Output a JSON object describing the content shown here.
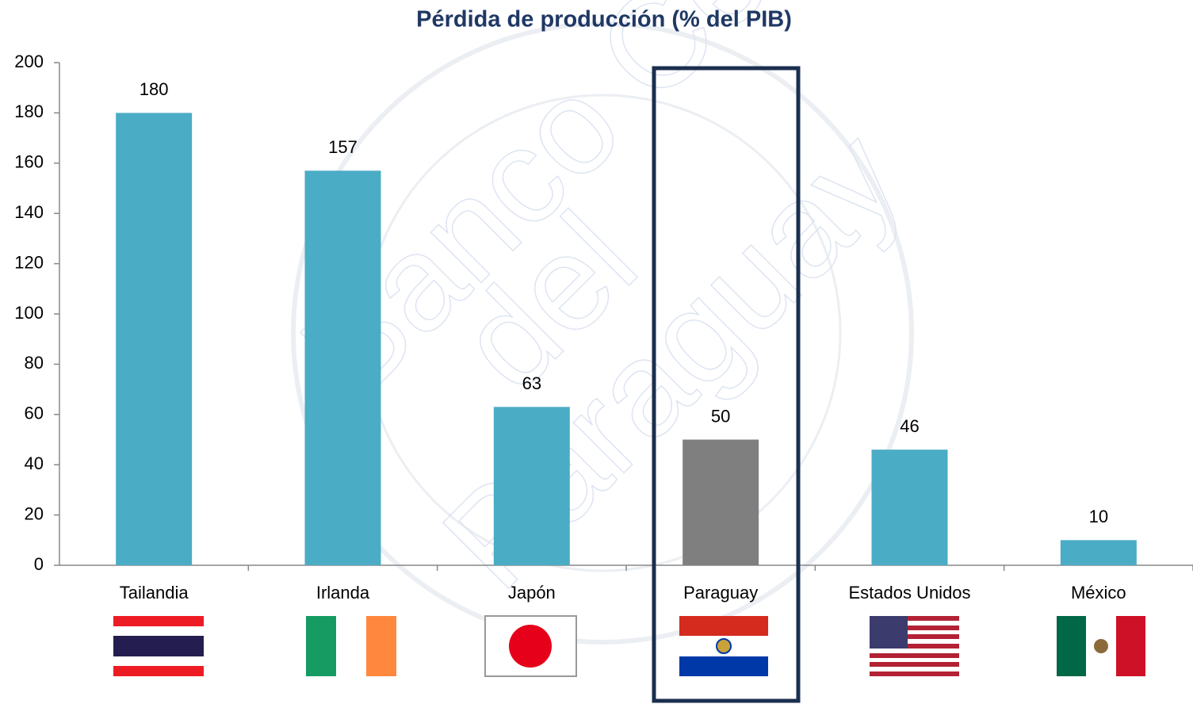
{
  "chart_data": {
    "type": "bar",
    "title": "Pérdida de producción (% del PIB)",
    "categories": [
      "Tailandia",
      "Irlanda",
      "Japón",
      "Paraguay",
      "Estados Unidos",
      "México"
    ],
    "values": [
      180,
      157,
      63,
      50,
      46,
      10
    ],
    "colors": [
      "#4bacc6",
      "#4bacc6",
      "#4bacc6",
      "#7f7f7f",
      "#4bacc6",
      "#4bacc6"
    ],
    "ylim": [
      0,
      200
    ],
    "yticks": [
      0,
      20,
      40,
      60,
      80,
      100,
      120,
      140,
      160,
      180,
      200
    ],
    "grid": false,
    "watermark": [
      "Banco Central",
      "del",
      "Paraguay"
    ]
  }
}
